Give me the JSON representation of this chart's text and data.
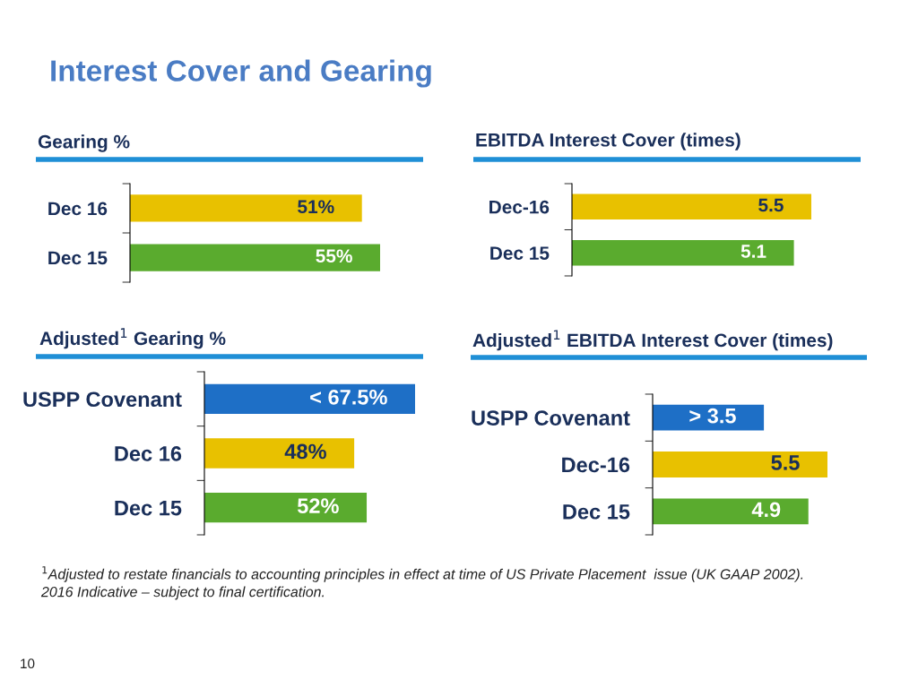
{
  "chart_data": [
    {
      "type": "bar",
      "orientation": "horizontal",
      "title": "Gearing %",
      "categories": [
        "Dec 16",
        "Dec 15"
      ],
      "values": [
        51,
        55
      ],
      "colors": [
        "#e8c100",
        "#5aab2e"
      ],
      "value_labels": [
        "51%",
        "55%"
      ],
      "annotations": [
        "Interest Cover and Gearing"
      ]
    },
    {
      "type": "bar",
      "orientation": "horizontal",
      "title": "EBITDA Interest Cover (times)",
      "categories": [
        "Dec-16",
        "Dec 15"
      ],
      "values": [
        5.5,
        5.1
      ],
      "colors": [
        "#e8c100",
        "#5aab2e"
      ],
      "value_labels": [
        "5.5",
        "5.1"
      ]
    },
    {
      "type": "bar",
      "orientation": "horizontal",
      "title": "Adjusted$^{1}$ Gearing %",
      "categories": [
        "USPP Covenant",
        "Dec 16",
        "Dec 15"
      ],
      "values": [
        67.5,
        48,
        52
      ],
      "colors": [
        "#1e6fc6",
        "#e8c100",
        "#5aab2e"
      ],
      "value_labels": [
        "< 67.5%",
        "48%",
        "52%"
      ]
    },
    {
      "type": "bar",
      "orientation": "horizontal",
      "title": "Adjusted$^{1}$ EBITDA Interest Cover (times)",
      "categories": [
        "USPP Covenant",
        "Dec-16",
        "Dec 15"
      ],
      "values": [
        3.5,
        5.5,
        4.9
      ],
      "colors": [
        "#1e6fc6",
        "#e8c100",
        "#5aab2e"
      ],
      "value_labels": [
        "> 3.5",
        "5.5",
        "4.9"
      ],
      "annotations": [
        "$^{1}$Adjusted to restate financials to accounting principles in effect at time of US Private Placement  issue (UK GAAP 2002).",
        "2016 Indicative – subject to final certification.",
        "10"
      ]
    }
  ]
}
